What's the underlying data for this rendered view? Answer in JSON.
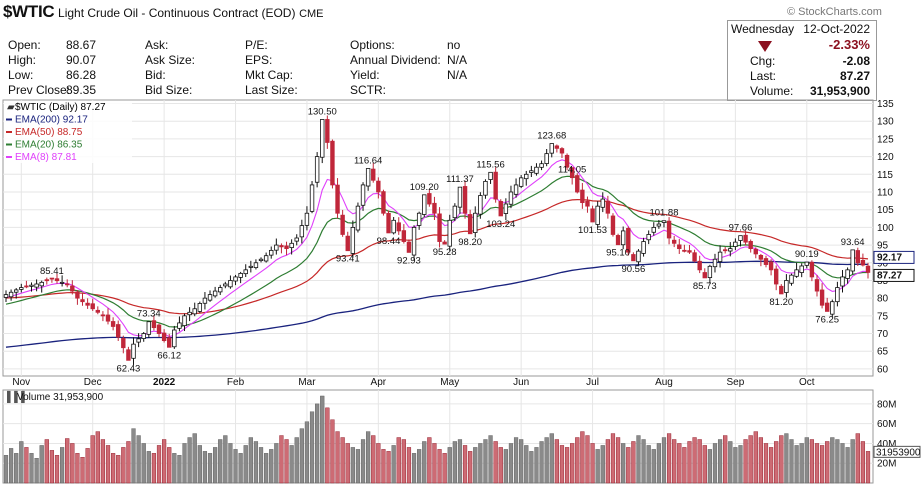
{
  "header": {
    "symbol": "$WTIC",
    "name": "Light Crude Oil - Continuous Contract (EOD)",
    "exchange": "CME",
    "credit": "© StockCharts.com",
    "quote_rows": [
      [
        [
          "Open:",
          "88.67"
        ],
        [
          "Ask:",
          ""
        ],
        [
          "P/E:",
          ""
        ],
        [
          "Options:",
          "no"
        ]
      ],
      [
        [
          "High:",
          "90.07"
        ],
        [
          "Ask Size:",
          ""
        ],
        [
          "EPS:",
          ""
        ],
        [
          "Annual Dividend:",
          "N/A"
        ]
      ],
      [
        [
          "Low:",
          "86.28"
        ],
        [
          "Bid:",
          ""
        ],
        [
          "Mkt Cap:",
          ""
        ],
        [
          "Yield:",
          "N/A"
        ]
      ],
      [
        [
          "Prev Close:",
          "89.35"
        ],
        [
          "Bid Size:",
          ""
        ],
        [
          "Last Size:",
          ""
        ],
        [
          "SCTR:",
          ""
        ]
      ]
    ],
    "box": {
      "day": "Wednesday",
      "date": "12-Oct-2022",
      "pct": "-2.33%",
      "chg_label": "Chg:",
      "chg": "-2.08",
      "last_label": "Last:",
      "last": "87.27",
      "vol_label": "Volume:",
      "volume": "31,953,900"
    },
    "colors": {
      "down": "#8b0f1e",
      "up": "#111111"
    }
  },
  "chart_data": {
    "type": "candlestick",
    "price_panel": {
      "legend": [
        {
          "text": "$WTIC (Daily) 87.27",
          "color": "#000000"
        },
        {
          "text": "EMA(200) 92.17",
          "color": "#1a237e"
        },
        {
          "text": "EMA(50) 88.75",
          "color": "#c62828"
        },
        {
          "text": "EMA(20) 86.35",
          "color": "#2e7d32"
        },
        {
          "text": "EMA(8) 87.81",
          "color": "#e040fb"
        }
      ],
      "y_ticks": [
        135,
        130,
        125,
        120,
        115,
        110,
        105,
        100,
        95,
        90,
        85,
        80,
        75,
        70,
        65,
        60
      ],
      "ylim": [
        58,
        136
      ],
      "x_labels": [
        "Nov",
        "Dec",
        "2022",
        "Feb",
        "Mar",
        "Apr",
        "May",
        "Jun",
        "Jul",
        "Aug",
        "Sep",
        "Oct"
      ],
      "last_labels": [
        "92.17",
        "87.27"
      ],
      "price_path": [
        [
          0,
          81
        ],
        [
          3,
          83
        ],
        [
          6,
          84
        ],
        [
          9,
          85.41
        ],
        [
          12,
          84
        ],
        [
          14,
          80
        ],
        [
          17,
          77
        ],
        [
          19,
          75
        ],
        [
          21,
          72
        ],
        [
          23,
          66
        ],
        [
          24,
          62.43
        ],
        [
          25,
          67
        ],
        [
          27,
          70
        ],
        [
          28,
          73.34
        ],
        [
          30,
          70
        ],
        [
          31,
          68
        ],
        [
          32,
          66.12
        ],
        [
          33,
          71
        ],
        [
          35,
          75
        ],
        [
          37,
          77
        ],
        [
          39,
          80
        ],
        [
          41,
          82
        ],
        [
          43,
          84
        ],
        [
          45,
          86
        ],
        [
          47,
          88
        ],
        [
          49,
          90
        ],
        [
          51,
          92
        ],
        [
          53,
          95
        ],
        [
          55,
          94
        ],
        [
          57,
          97
        ],
        [
          59,
          104
        ],
        [
          60,
          112
        ],
        [
          61,
          120
        ],
        [
          62,
          130.5
        ],
        [
          63,
          124
        ],
        [
          64,
          112
        ],
        [
          65,
          104
        ],
        [
          66,
          98
        ],
        [
          67,
          93.41
        ],
        [
          68,
          100
        ],
        [
          69,
          106
        ],
        [
          70,
          112
        ],
        [
          71,
          116.64
        ],
        [
          73,
          110
        ],
        [
          74,
          104
        ],
        [
          75,
          98.44
        ],
        [
          76,
          102
        ],
        [
          78,
          96
        ],
        [
          79,
          92.93
        ],
        [
          80,
          100
        ],
        [
          81,
          104
        ],
        [
          82,
          109.2
        ],
        [
          84,
          104
        ],
        [
          85,
          96
        ],
        [
          86,
          95.28
        ],
        [
          87,
          102
        ],
        [
          88,
          106
        ],
        [
          89,
          111.37
        ],
        [
          90,
          104
        ],
        [
          91,
          98.2
        ],
        [
          92,
          104
        ],
        [
          93,
          109
        ],
        [
          94,
          113
        ],
        [
          95,
          115.56
        ],
        [
          96,
          108
        ],
        [
          97,
          103.24
        ],
        [
          99,
          110
        ],
        [
          101,
          114
        ],
        [
          103,
          116
        ],
        [
          105,
          118
        ],
        [
          107,
          123.68
        ],
        [
          109,
          121
        ],
        [
          110,
          117
        ],
        [
          111,
          114.05
        ],
        [
          112,
          110
        ],
        [
          113,
          107
        ],
        [
          114,
          106
        ],
        [
          115,
          101.53
        ],
        [
          116,
          106
        ],
        [
          117,
          108
        ],
        [
          118,
          104
        ],
        [
          119,
          98
        ],
        [
          120,
          95.1
        ],
        [
          121,
          99
        ],
        [
          122,
          93
        ],
        [
          123,
          90.56
        ],
        [
          125,
          96
        ],
        [
          127,
          100
        ],
        [
          129,
          101.88
        ],
        [
          130,
          97
        ],
        [
          132,
          94
        ],
        [
          134,
          93
        ],
        [
          136,
          88
        ],
        [
          137,
          85.73
        ],
        [
          138,
          89
        ],
        [
          140,
          93
        ],
        [
          142,
          94
        ],
        [
          144,
          97.66
        ],
        [
          146,
          94
        ],
        [
          148,
          91
        ],
        [
          150,
          88
        ],
        [
          151,
          84
        ],
        [
          152,
          81.2
        ],
        [
          153,
          85
        ],
        [
          155,
          88
        ],
        [
          157,
          90.19
        ],
        [
          158,
          86
        ],
        [
          159,
          82
        ],
        [
          160,
          78
        ],
        [
          161,
          76.25
        ],
        [
          162,
          79
        ],
        [
          163,
          83
        ],
        [
          164,
          86
        ],
        [
          165,
          88
        ],
        [
          166,
          93.64
        ],
        [
          167,
          90
        ],
        [
          168,
          89.35
        ],
        [
          169,
          87.27
        ]
      ],
      "annotations": [
        {
          "text": "85.41",
          "i": 9,
          "v": 85.41,
          "pos": "above"
        },
        {
          "text": "73.34",
          "i": 28,
          "v": 73.34,
          "pos": "above"
        },
        {
          "text": "62.43",
          "i": 24,
          "v": 62.43,
          "pos": "below"
        },
        {
          "text": "66.12",
          "i": 32,
          "v": 66.12,
          "pos": "below"
        },
        {
          "text": "130.50",
          "i": 62,
          "v": 130.5,
          "pos": "above"
        },
        {
          "text": "93.41",
          "i": 67,
          "v": 93.41,
          "pos": "below"
        },
        {
          "text": "116.64",
          "i": 71,
          "v": 116.64,
          "pos": "above"
        },
        {
          "text": "98.44",
          "i": 75,
          "v": 98.44,
          "pos": "below"
        },
        {
          "text": "92.93",
          "i": 79,
          "v": 92.93,
          "pos": "below"
        },
        {
          "text": "109.20",
          "i": 82,
          "v": 109.2,
          "pos": "above"
        },
        {
          "text": "95.28",
          "i": 86,
          "v": 95.28,
          "pos": "below"
        },
        {
          "text": "111.37",
          "i": 89,
          "v": 111.37,
          "pos": "above"
        },
        {
          "text": "98.20",
          "i": 91,
          "v": 98.2,
          "pos": "below"
        },
        {
          "text": "115.56",
          "i": 95,
          "v": 115.56,
          "pos": "above"
        },
        {
          "text": "103.24",
          "i": 97,
          "v": 103.24,
          "pos": "below"
        },
        {
          "text": "123.68",
          "i": 107,
          "v": 123.68,
          "pos": "above"
        },
        {
          "text": "114.05",
          "i": 111,
          "v": 114.05,
          "pos": "above"
        },
        {
          "text": "101.53",
          "i": 115,
          "v": 101.53,
          "pos": "below"
        },
        {
          "text": "95.10",
          "i": 120,
          "v": 95.1,
          "pos": "below"
        },
        {
          "text": "90.56",
          "i": 123,
          "v": 90.56,
          "pos": "below"
        },
        {
          "text": "101.88",
          "i": 129,
          "v": 101.88,
          "pos": "above"
        },
        {
          "text": "85.73",
          "i": 137,
          "v": 85.73,
          "pos": "below"
        },
        {
          "text": "97.66",
          "i": 144,
          "v": 97.66,
          "pos": "above"
        },
        {
          "text": "81.20",
          "i": 152,
          "v": 81.2,
          "pos": "below"
        },
        {
          "text": "90.19",
          "i": 157,
          "v": 90.19,
          "pos": "above"
        },
        {
          "text": "76.25",
          "i": 161,
          "v": 76.25,
          "pos": "below"
        },
        {
          "text": "93.64",
          "i": 166,
          "v": 93.64,
          "pos": "above"
        }
      ]
    },
    "volume_panel": {
      "legend": "Volume 31,953,900",
      "y_ticks": [
        "80M",
        "60M",
        "40M",
        "20M"
      ],
      "ylim": [
        0,
        90
      ],
      "last_label": "31953900",
      "volumes_m": [
        28,
        35,
        30,
        42,
        36,
        30,
        25,
        38,
        44,
        33,
        28,
        36,
        45,
        40,
        30,
        26,
        35,
        48,
        52,
        44,
        38,
        30,
        28,
        36,
        42,
        55,
        48,
        40,
        32,
        30,
        38,
        44,
        36,
        30,
        28,
        40,
        46,
        50,
        38,
        32,
        30,
        36,
        44,
        48,
        40,
        34,
        30,
        38,
        46,
        42,
        36,
        30,
        34,
        40,
        48,
        44,
        38,
        46,
        55,
        62,
        72,
        80,
        88,
        76,
        64,
        52,
        46,
        40,
        36,
        34,
        44,
        52,
        48,
        40,
        34,
        32,
        38,
        46,
        44,
        36,
        30,
        34,
        42,
        46,
        40,
        34,
        30,
        36,
        42,
        44,
        38,
        32,
        36,
        40,
        44,
        48,
        42,
        36,
        34,
        40,
        46,
        44,
        38,
        32,
        36,
        42,
        46,
        50,
        44,
        38,
        36,
        40,
        46,
        52,
        48,
        40,
        34,
        38,
        44,
        50,
        46,
        40,
        36,
        42,
        48,
        44,
        38,
        34,
        40,
        46,
        50,
        44,
        40,
        36,
        42,
        46,
        44,
        38,
        34,
        40,
        44,
        48,
        42,
        36,
        38,
        44,
        48,
        52,
        46,
        40,
        36,
        42,
        48,
        50,
        44,
        38,
        40,
        46,
        44,
        40,
        38,
        42,
        46,
        44,
        40,
        36,
        44,
        50,
        42,
        32
      ]
    }
  }
}
